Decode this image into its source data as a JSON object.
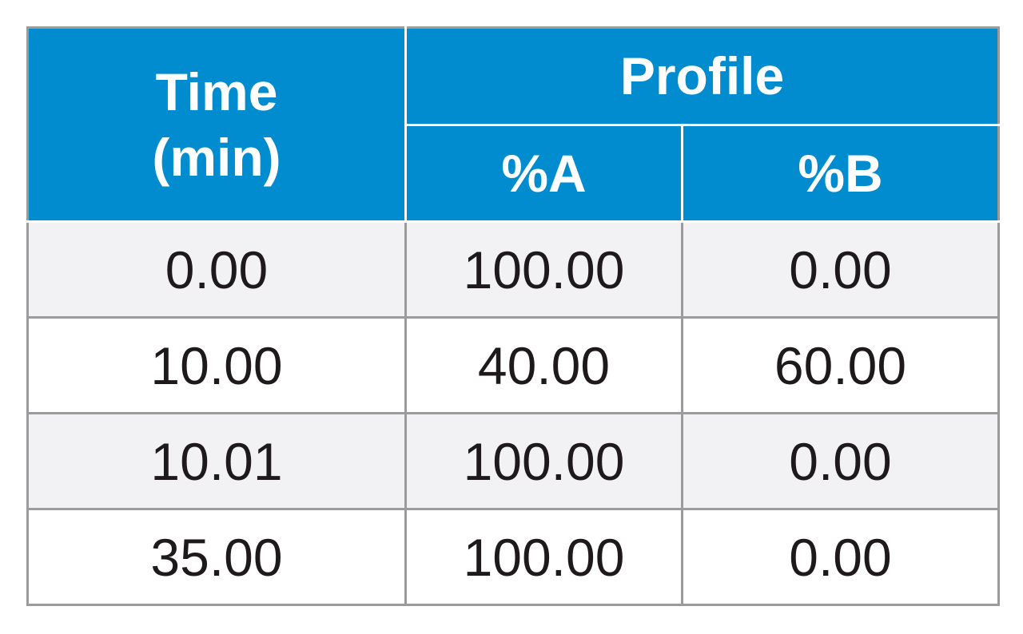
{
  "table": {
    "header": {
      "time_line1": "Time",
      "time_line2": "(min)",
      "profile": "Profile",
      "col_a": "%A",
      "col_b": "%B"
    },
    "rows": [
      {
        "time": "0.00",
        "a": "100.00",
        "b": "0.00"
      },
      {
        "time": "10.00",
        "a": "40.00",
        "b": "60.00"
      },
      {
        "time": "10.01",
        "a": "100.00",
        "b": "0.00"
      },
      {
        "time": "35.00",
        "a": "100.00",
        "b": "0.00"
      }
    ],
    "colors": {
      "header_bg": "#008ccf",
      "header_text": "#ffffff",
      "row_shade": "#f2f2f4",
      "border": "#9b9b9b",
      "text": "#1e1a1b"
    }
  }
}
